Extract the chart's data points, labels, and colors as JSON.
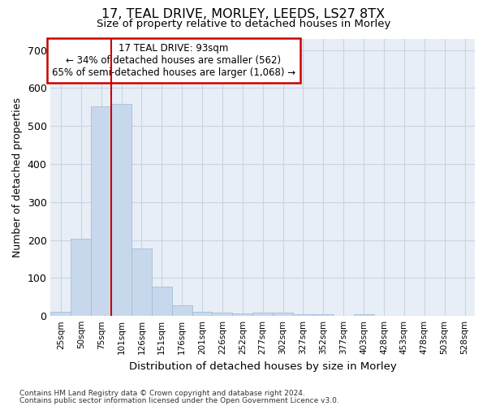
{
  "title_line1": "17, TEAL DRIVE, MORLEY, LEEDS, LS27 8TX",
  "title_line2": "Size of property relative to detached houses in Morley",
  "xlabel": "Distribution of detached houses by size in Morley",
  "ylabel": "Number of detached properties",
  "bar_color": "#c8d8ec",
  "bar_edge_color": "#9ab8d4",
  "grid_color": "#c8d4e4",
  "background_color": "#e8eef6",
  "bin_labels": [
    "25sqm",
    "50sqm",
    "75sqm",
    "101sqm",
    "126sqm",
    "151sqm",
    "176sqm",
    "201sqm",
    "226sqm",
    "252sqm",
    "277sqm",
    "302sqm",
    "327sqm",
    "352sqm",
    "377sqm",
    "403sqm",
    "428sqm",
    "453sqm",
    "478sqm",
    "503sqm",
    "528sqm"
  ],
  "bar_values": [
    12,
    204,
    551,
    558,
    178,
    77,
    28,
    12,
    8,
    7,
    9,
    8,
    5,
    4,
    0,
    5,
    0,
    0,
    0,
    0,
    0
  ],
  "ylim": [
    0,
    730
  ],
  "yticks": [
    0,
    100,
    200,
    300,
    400,
    500,
    600,
    700
  ],
  "property_bin_index": 2,
  "annotation_title": "17 TEAL DRIVE: 93sqm",
  "annotation_line2": "← 34% of detached houses are smaller (562)",
  "annotation_line3": "65% of semi-detached houses are larger (1,068) →",
  "annotation_box_color": "#ffffff",
  "annotation_box_edge": "#cc0000",
  "vline_color": "#cc0000",
  "footer_line1": "Contains HM Land Registry data © Crown copyright and database right 2024.",
  "footer_line2": "Contains public sector information licensed under the Open Government Licence v3.0."
}
